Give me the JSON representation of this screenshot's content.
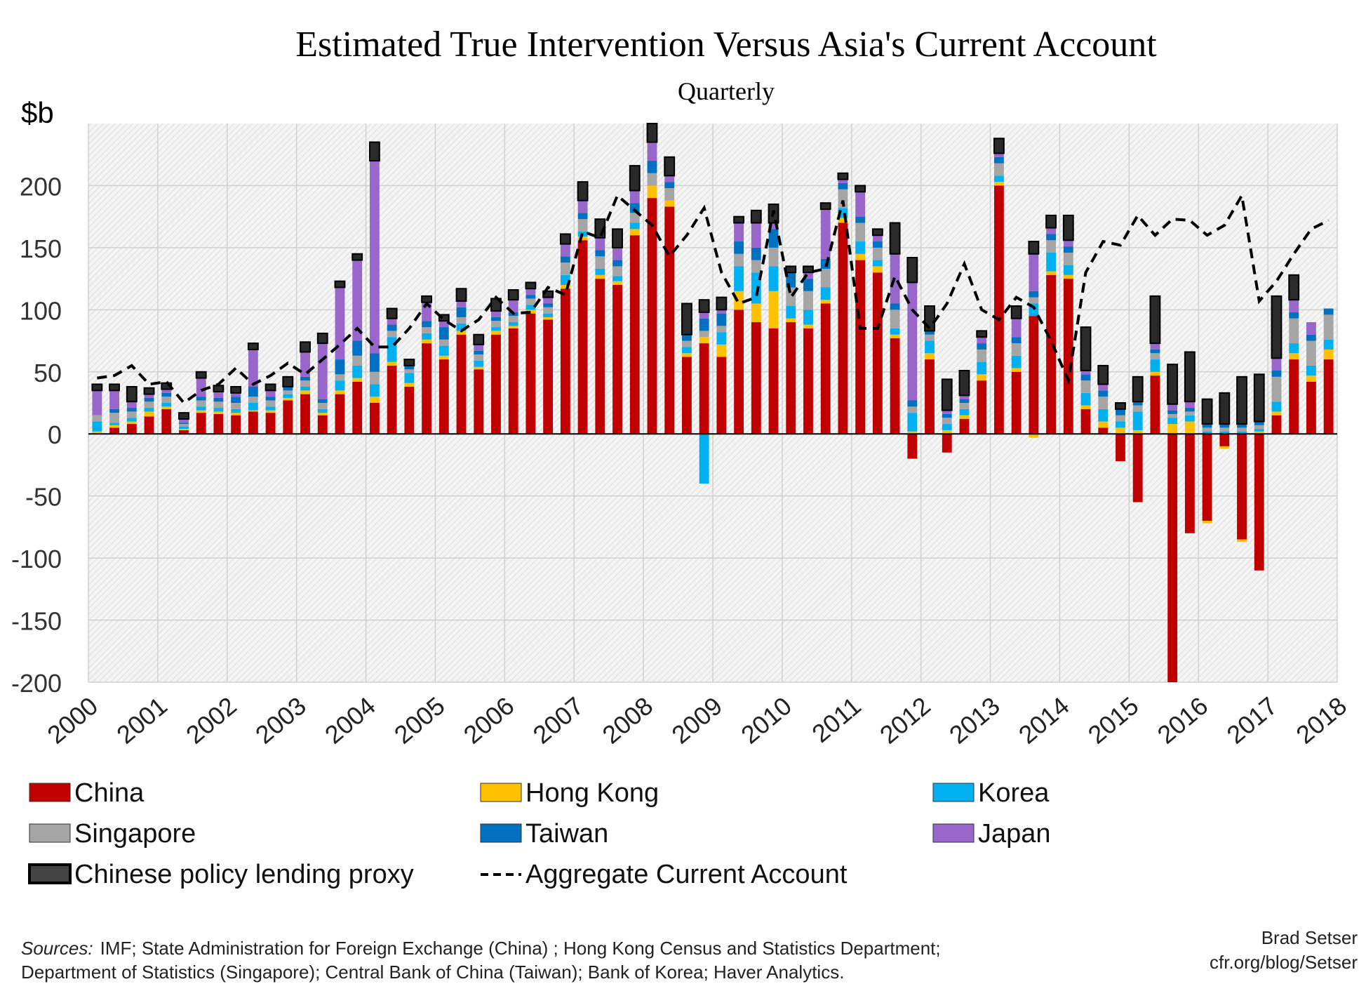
{
  "chart_data": {
    "type": "bar",
    "stacked": true,
    "title": "Estimated True Intervention Versus Asia's Current Account",
    "subtitle": "Quarterly",
    "ylabel": "$b",
    "ylim": [
      -200,
      250
    ],
    "yticks": [
      "200",
      "150",
      "100",
      "50",
      "0",
      "-50",
      "-100",
      "-150",
      "-200"
    ],
    "xticks": [
      "2000",
      "2001",
      "2002",
      "2003",
      "2004",
      "2005",
      "2006",
      "2007",
      "2008",
      "2009",
      "2010",
      "2011",
      "2012",
      "2013",
      "2014",
      "2015",
      "2016",
      "2017",
      "2018"
    ],
    "grid": true,
    "legend_position": "bottom",
    "categories": [
      "2000Q1",
      "2000Q2",
      "2000Q3",
      "2000Q4",
      "2001Q1",
      "2001Q2",
      "2001Q3",
      "2001Q4",
      "2002Q1",
      "2002Q2",
      "2002Q3",
      "2002Q4",
      "2003Q1",
      "2003Q2",
      "2003Q3",
      "2003Q4",
      "2004Q1",
      "2004Q2",
      "2004Q3",
      "2004Q4",
      "2005Q1",
      "2005Q2",
      "2005Q3",
      "2005Q4",
      "2006Q1",
      "2006Q2",
      "2006Q3",
      "2006Q4",
      "2007Q1",
      "2007Q2",
      "2007Q3",
      "2007Q4",
      "2008Q1",
      "2008Q2",
      "2008Q3",
      "2008Q4",
      "2009Q1",
      "2009Q2",
      "2009Q3",
      "2009Q4",
      "2010Q1",
      "2010Q2",
      "2010Q3",
      "2010Q4",
      "2011Q1",
      "2011Q2",
      "2011Q3",
      "2011Q4",
      "2012Q1",
      "2012Q2",
      "2012Q3",
      "2012Q4",
      "2013Q1",
      "2013Q2",
      "2013Q3",
      "2013Q4",
      "2014Q1",
      "2014Q2",
      "2014Q3",
      "2014Q4",
      "2015Q1",
      "2015Q2",
      "2015Q3",
      "2015Q4",
      "2016Q1",
      "2016Q2",
      "2016Q3",
      "2016Q4",
      "2017Q1",
      "2017Q2",
      "2017Q3",
      "2017Q4"
    ],
    "series": [
      {
        "name": "China",
        "color": "#c00000",
        "values": [
          0,
          5,
          8,
          14,
          20,
          3,
          17,
          16,
          15,
          18,
          17,
          27,
          32,
          15,
          32,
          42,
          25,
          55,
          38,
          73,
          60,
          80,
          52,
          80,
          85,
          97,
          92,
          117,
          156,
          125,
          120,
          160,
          190,
          183,
          62,
          73,
          62,
          100,
          90,
          85,
          90,
          85,
          105,
          170,
          140,
          130,
          77,
          -20,
          60,
          -15,
          12,
          43,
          200,
          50,
          95,
          128,
          125,
          20,
          5,
          -22,
          -55,
          47,
          -200,
          -80,
          -70,
          -10,
          -85,
          -110,
          15,
          60,
          42,
          60
        ]
      },
      {
        "name": "Hong Kong",
        "color": "#ffc000",
        "values": [
          2,
          2,
          2,
          4,
          2,
          1,
          2,
          2,
          2,
          1,
          2,
          2,
          3,
          2,
          3,
          3,
          5,
          3,
          3,
          3,
          3,
          3,
          2,
          3,
          2,
          3,
          2,
          3,
          3,
          3,
          3,
          5,
          10,
          5,
          3,
          5,
          10,
          15,
          15,
          30,
          3,
          3,
          3,
          4,
          5,
          5,
          3,
          2,
          5,
          3,
          3,
          5,
          3,
          3,
          -3,
          3,
          3,
          3,
          5,
          5,
          3,
          3,
          8,
          10,
          -2,
          -2,
          -2,
          2,
          3,
          5,
          5,
          8
        ]
      },
      {
        "name": "Korea",
        "color": "#00b0f0",
        "values": [
          8,
          2,
          3,
          3,
          3,
          2,
          3,
          3,
          3,
          6,
          3,
          3,
          3,
          3,
          8,
          10,
          10,
          20,
          8,
          5,
          8,
          6,
          5,
          3,
          3,
          4,
          3,
          8,
          4,
          5,
          4,
          5,
          0,
          0,
          5,
          -40,
          10,
          20,
          25,
          20,
          10,
          12,
          10,
          8,
          10,
          5,
          5,
          15,
          10,
          5,
          5,
          10,
          5,
          10,
          10,
          15,
          8,
          10,
          10,
          5,
          15,
          10,
          5,
          5,
          2,
          2,
          2,
          2,
          8,
          8,
          8,
          8
        ]
      },
      {
        "name": "Singapore",
        "color": "#a5a5a5",
        "values": [
          5,
          8,
          5,
          5,
          5,
          2,
          5,
          5,
          5,
          5,
          5,
          3,
          5,
          5,
          5,
          8,
          10,
          5,
          3,
          5,
          5,
          5,
          5,
          5,
          5,
          5,
          5,
          10,
          10,
          10,
          8,
          8,
          10,
          10,
          5,
          5,
          5,
          10,
          10,
          15,
          15,
          15,
          15,
          15,
          15,
          10,
          15,
          5,
          5,
          5,
          5,
          10,
          10,
          10,
          5,
          10,
          10,
          10,
          10,
          5,
          5,
          5,
          3,
          3,
          3,
          3,
          3,
          3,
          20,
          20,
          20,
          20
        ]
      },
      {
        "name": "Taiwan",
        "color": "#0070c0",
        "values": [
          0,
          3,
          3,
          3,
          3,
          1,
          3,
          3,
          5,
          8,
          3,
          3,
          3,
          3,
          12,
          12,
          15,
          5,
          3,
          5,
          10,
          8,
          3,
          3,
          3,
          3,
          3,
          5,
          5,
          5,
          5,
          8,
          10,
          5,
          5,
          10,
          10,
          10,
          10,
          15,
          12,
          10,
          8,
          5,
          5,
          5,
          5,
          5,
          3,
          3,
          3,
          5,
          5,
          5,
          5,
          5,
          5,
          5,
          5,
          5,
          3,
          3,
          3,
          3,
          3,
          3,
          3,
          3,
          5,
          5,
          5,
          5
        ]
      },
      {
        "name": "Japan",
        "color": "#9966cc",
        "values": [
          20,
          15,
          5,
          3,
          3,
          3,
          15,
          5,
          3,
          30,
          5,
          0,
          20,
          45,
          58,
          65,
          155,
          5,
          0,
          15,
          5,
          5,
          5,
          5,
          10,
          5,
          5,
          10,
          10,
          10,
          10,
          10,
          15,
          5,
          0,
          5,
          3,
          15,
          20,
          5,
          0,
          5,
          40,
          3,
          20,
          5,
          40,
          95,
          0,
          3,
          3,
          5,
          3,
          15,
          30,
          5,
          5,
          3,
          5,
          0,
          0,
          5,
          5,
          5,
          0,
          0,
          0,
          0,
          10,
          10,
          10,
          0
        ]
      },
      {
        "name": "Chinese policy lending proxy",
        "color": "#000000",
        "values": [
          5,
          5,
          12,
          5,
          5,
          5,
          5,
          5,
          5,
          5,
          5,
          8,
          8,
          8,
          5,
          5,
          15,
          8,
          5,
          5,
          5,
          10,
          8,
          10,
          8,
          5,
          5,
          8,
          15,
          15,
          15,
          20,
          15,
          15,
          25,
          10,
          10,
          5,
          10,
          15,
          5,
          5,
          5,
          5,
          5,
          5,
          25,
          20,
          20,
          25,
          20,
          5,
          12,
          10,
          10,
          10,
          20,
          35,
          15,
          5,
          20,
          38,
          32,
          40,
          20,
          25,
          38,
          38,
          50,
          20,
          0,
          0
        ]
      }
    ],
    "line": {
      "name": "Aggregate Current Account",
      "values": [
        45,
        47,
        55,
        40,
        42,
        25,
        35,
        40,
        53,
        40,
        47,
        57,
        48,
        60,
        72,
        85,
        70,
        70,
        85,
        105,
        92,
        83,
        92,
        110,
        97,
        98,
        118,
        112,
        163,
        158,
        192,
        180,
        168,
        143,
        160,
        182,
        130,
        105,
        110,
        180,
        110,
        130,
        133,
        188,
        85,
        85,
        127,
        100,
        85,
        105,
        137,
        100,
        92,
        110,
        102,
        75,
        43,
        130,
        155,
        152,
        176,
        160,
        173,
        172,
        160,
        168,
        192,
        107,
        123,
        145,
        165,
        172
      ]
    },
    "legend": [
      {
        "label": "China",
        "color": "#c00000",
        "kind": "box"
      },
      {
        "label": "Hong Kong",
        "color": "#ffc000",
        "kind": "box"
      },
      {
        "label": "Korea",
        "color": "#00b0f0",
        "kind": "box"
      },
      {
        "label": "Singapore",
        "color": "#a5a5a5",
        "kind": "box"
      },
      {
        "label": "Taiwan",
        "color": "#0070c0",
        "kind": "box"
      },
      {
        "label": "Japan",
        "color": "#9966cc",
        "kind": "box"
      },
      {
        "label": "Chinese policy lending proxy",
        "color": "#000000",
        "kind": "box"
      },
      {
        "label": "Aggregate Current Account",
        "color": "#000000",
        "kind": "dash"
      }
    ],
    "sources_label": "Sources:",
    "sources_line1": "IMF; State Administration for Foreign Exchange (China) ; Hong Kong Census and Statistics Department;",
    "sources_line2": "Department of Statistics (Singapore); Central Bank of China (Taiwan); Bank of Korea; Haver Analytics.",
    "credit_name": "Brad Setser",
    "credit_url": "cfr.org/blog/Setser"
  }
}
